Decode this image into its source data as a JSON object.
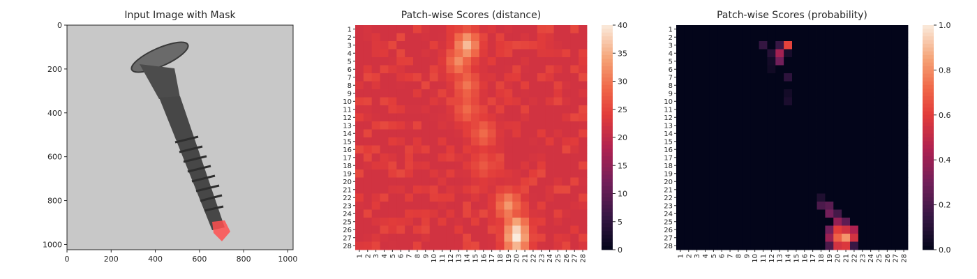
{
  "chart_data": [
    {
      "type": "image",
      "title": "Input Image with Mask",
      "xlim": [
        0,
        1024
      ],
      "ylim": [
        1024,
        0
      ],
      "x_ticks": [
        0,
        200,
        400,
        600,
        800,
        1000
      ],
      "y_ticks": [
        0,
        200,
        400,
        600,
        800,
        1000
      ],
      "content_icon": "screw-with-red-defect-mask",
      "background_color": "#c8c8c8",
      "mask_color": "#ff3030"
    },
    {
      "type": "heatmap",
      "title": "Patch-wise Scores (distance)",
      "rows": 28,
      "cols": 28,
      "x_labels": [
        "1",
        "2",
        "3",
        "4",
        "5",
        "6",
        "7",
        "8",
        "9",
        "10",
        "11",
        "12",
        "13",
        "14",
        "15",
        "16",
        "17",
        "18",
        "19",
        "20",
        "21",
        "22",
        "23",
        "24",
        "25",
        "26",
        "27",
        "28"
      ],
      "y_labels": [
        "1",
        "2",
        "3",
        "4",
        "5",
        "6",
        "7",
        "8",
        "9",
        "10",
        "11",
        "12",
        "13",
        "14",
        "15",
        "16",
        "17",
        "18",
        "19",
        "20",
        "21",
        "22",
        "23",
        "24",
        "25",
        "26",
        "27",
        "28"
      ],
      "colorbar_range": [
        0,
        40
      ],
      "colorbar_ticks": [
        0,
        5,
        10,
        15,
        20,
        25,
        30,
        35,
        40
      ],
      "colormap": "rocket",
      "base_value": 22,
      "hotspots": [
        {
          "row": 3,
          "col": 14,
          "value": 36
        },
        {
          "row": 5,
          "col": 13,
          "value": 32
        },
        {
          "row": 8,
          "col": 14,
          "value": 30
        },
        {
          "row": 11,
          "col": 14,
          "value": 29
        },
        {
          "row": 14,
          "col": 16,
          "value": 29
        },
        {
          "row": 18,
          "col": 16,
          "value": 27
        },
        {
          "row": 23,
          "col": 19,
          "value": 33
        },
        {
          "row": 26,
          "col": 20,
          "value": 38
        },
        {
          "row": 27,
          "col": 20,
          "value": 40
        }
      ]
    },
    {
      "type": "heatmap",
      "title": "Patch-wise Scores (probability)",
      "rows": 28,
      "cols": 28,
      "x_labels": [
        "1",
        "2",
        "3",
        "4",
        "5",
        "6",
        "7",
        "8",
        "9",
        "10",
        "11",
        "12",
        "13",
        "14",
        "15",
        "16",
        "17",
        "18",
        "19",
        "20",
        "21",
        "22",
        "23",
        "24",
        "25",
        "26",
        "27",
        "28"
      ],
      "y_labels": [
        "1",
        "2",
        "3",
        "4",
        "5",
        "6",
        "7",
        "8",
        "9",
        "10",
        "11",
        "12",
        "13",
        "14",
        "15",
        "16",
        "17",
        "18",
        "19",
        "20",
        "21",
        "22",
        "23",
        "24",
        "25",
        "26",
        "27",
        "28"
      ],
      "colorbar_range": [
        0.0,
        1.0
      ],
      "colorbar_ticks": [
        0.0,
        0.2,
        0.4,
        0.6,
        0.8,
        1.0
      ],
      "colormap": "rocket",
      "base_value": 0.0,
      "cells": [
        {
          "row": 3,
          "col": 14,
          "value": 0.62
        },
        {
          "row": 3,
          "col": 13,
          "value": 0.15
        },
        {
          "row": 3,
          "col": 11,
          "value": 0.14
        },
        {
          "row": 4,
          "col": 13,
          "value": 0.42
        },
        {
          "row": 4,
          "col": 12,
          "value": 0.1
        },
        {
          "row": 5,
          "col": 13,
          "value": 0.3
        },
        {
          "row": 4,
          "col": 14,
          "value": 0.06
        },
        {
          "row": 5,
          "col": 12,
          "value": 0.05
        },
        {
          "row": 6,
          "col": 12,
          "value": 0.04
        },
        {
          "row": 7,
          "col": 14,
          "value": 0.12
        },
        {
          "row": 9,
          "col": 14,
          "value": 0.05
        },
        {
          "row": 10,
          "col": 14,
          "value": 0.07
        },
        {
          "row": 22,
          "col": 18,
          "value": 0.08
        },
        {
          "row": 23,
          "col": 18,
          "value": 0.2
        },
        {
          "row": 23,
          "col": 19,
          "value": 0.24
        },
        {
          "row": 24,
          "col": 19,
          "value": 0.3
        },
        {
          "row": 24,
          "col": 20,
          "value": 0.18
        },
        {
          "row": 25,
          "col": 20,
          "value": 0.38
        },
        {
          "row": 25,
          "col": 21,
          "value": 0.25
        },
        {
          "row": 26,
          "col": 20,
          "value": 0.6
        },
        {
          "row": 26,
          "col": 21,
          "value": 0.55
        },
        {
          "row": 26,
          "col": 22,
          "value": 0.45
        },
        {
          "row": 26,
          "col": 19,
          "value": 0.3
        },
        {
          "row": 27,
          "col": 20,
          "value": 0.7
        },
        {
          "row": 27,
          "col": 21,
          "value": 0.82
        },
        {
          "row": 27,
          "col": 22,
          "value": 0.55
        },
        {
          "row": 27,
          "col": 19,
          "value": 0.4
        },
        {
          "row": 28,
          "col": 20,
          "value": 0.55
        },
        {
          "row": 28,
          "col": 21,
          "value": 0.58
        },
        {
          "row": 28,
          "col": 19,
          "value": 0.2
        },
        {
          "row": 28,
          "col": 22,
          "value": 0.15
        }
      ]
    }
  ]
}
